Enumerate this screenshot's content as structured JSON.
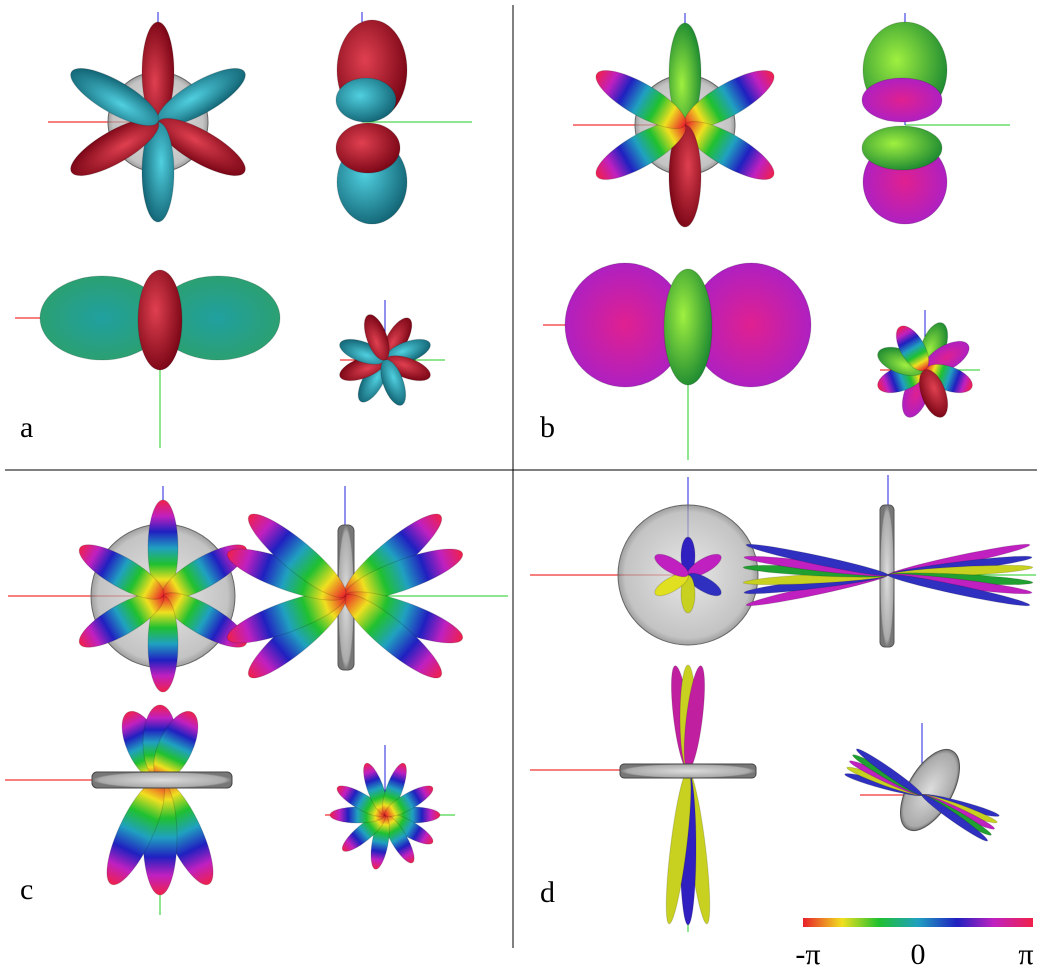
{
  "panels": [
    {
      "label": "a"
    },
    {
      "label": "b"
    },
    {
      "label": "c"
    },
    {
      "label": "d"
    }
  ],
  "colorbar": {
    "labels": [
      "-π",
      "0",
      "π"
    ]
  }
}
